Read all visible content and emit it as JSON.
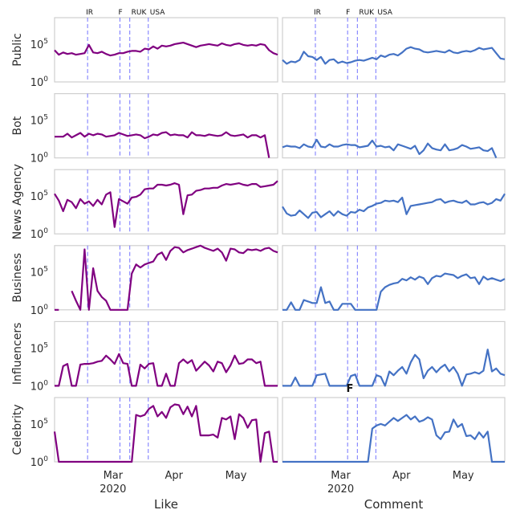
{
  "chart_data": {
    "type": "line",
    "columns": [
      "Like",
      "Comment"
    ],
    "rows": [
      "Public",
      "Bot",
      "News Agency",
      "Business",
      "Influencers",
      "Celebrity"
    ],
    "y_scale": "log",
    "y_ticks": [
      "10^0",
      "10^5"
    ],
    "x_ticks": [
      "Mar",
      "Apr",
      "May"
    ],
    "x_year": "2020",
    "events": [
      {
        "label": "IR",
        "x": 0.148
      },
      {
        "label": "F",
        "x": 0.293
      },
      {
        "label": "RUK",
        "x": 0.337
      },
      {
        "label": "USA",
        "x": 0.42
      }
    ],
    "colors": {
      "Like": "#800080",
      "Comment": "#4472c4",
      "events": "#6b6bff"
    },
    "grid": false,
    "panel_text": {
      "comment_celebrity": "F"
    },
    "series": {
      "Like": [
        [
          4.2,
          3.6,
          3.9,
          3.7,
          3.8,
          3.6,
          3.7,
          3.8,
          4.9,
          3.9,
          3.8,
          4.0,
          3.7,
          3.5,
          3.6,
          3.8,
          3.8,
          4.0,
          4.1,
          4.1,
          4.0,
          4.4,
          4.3,
          4.7,
          4.4,
          4.8,
          4.7,
          4.8,
          5.0,
          5.1,
          5.2,
          5.0,
          4.8,
          4.6,
          4.8,
          4.9,
          5.0,
          4.9,
          4.8,
          5.1,
          4.9,
          4.8,
          5.0,
          5.1,
          4.9,
          4.8,
          4.9,
          4.8,
          5.0,
          4.9,
          4.2,
          3.8,
          3.6
        ],
        [
          2.8,
          2.8,
          2.8,
          3.2,
          2.7,
          3.0,
          3.3,
          2.8,
          3.2,
          3.0,
          3.2,
          3.1,
          2.8,
          2.9,
          3.0,
          3.3,
          3.1,
          2.9,
          3.0,
          3.1,
          3.0,
          2.6,
          2.8,
          3.1,
          3.0,
          3.3,
          3.4,
          3.0,
          3.1,
          3.0,
          3.0,
          2.7,
          3.4,
          3.0,
          3.0,
          2.9,
          3.1,
          3.0,
          2.9,
          3.0,
          3.4,
          3.0,
          2.9,
          3.0,
          3.1,
          2.7,
          3.0,
          3.0,
          2.7,
          3.0,
          0,
          null,
          null
        ],
        [
          5.3,
          4.4,
          3.0,
          4.5,
          4.2,
          3.4,
          4.6,
          4.0,
          4.3,
          3.7,
          4.5,
          3.9,
          5.2,
          5.5,
          0.9,
          4.6,
          4.3,
          4.0,
          4.8,
          4.9,
          5.2,
          5.9,
          6.0,
          6.0,
          6.5,
          6.5,
          6.4,
          6.5,
          6.7,
          6.5,
          2.6,
          5.1,
          5.2,
          5.7,
          5.8,
          6.0,
          6.0,
          6.1,
          6.1,
          6.4,
          6.6,
          6.5,
          6.6,
          6.7,
          6.5,
          6.4,
          6.6,
          6.6,
          6.2,
          6.3,
          6.4,
          6.5,
          7.0
        ],
        [
          0,
          0,
          null,
          null,
          2.5,
          1.2,
          0,
          8.0,
          0,
          5.5,
          2.5,
          1.7,
          1.2,
          0,
          0,
          0,
          0,
          0,
          4.8,
          6.0,
          5.6,
          6.0,
          6.2,
          6.4,
          7.3,
          7.6,
          6.6,
          7.8,
          8.3,
          8.2,
          7.6,
          7.9,
          8.1,
          8.3,
          8.6,
          8.2,
          8.0,
          7.8,
          8.1,
          7.6,
          6.5,
          8.1,
          8.0,
          7.6,
          7.5,
          8.0,
          7.9,
          8.0,
          7.8,
          8.1,
          8.2,
          7.8,
          7.6
        ],
        [
          0,
          0,
          2.6,
          2.9,
          0,
          0,
          2.8,
          2.9,
          2.9,
          3.0,
          3.2,
          3.3,
          4.0,
          3.5,
          2.9,
          4.2,
          3.0,
          2.9,
          0,
          0,
          2.8,
          2.3,
          2.9,
          3.0,
          0,
          0,
          1.6,
          0,
          0,
          3.0,
          3.5,
          3.0,
          3.4,
          2.0,
          2.6,
          3.2,
          2.7,
          1.9,
          3.2,
          3.0,
          1.8,
          2.7,
          4.0,
          2.9,
          3.0,
          3.5,
          3.5,
          3.0,
          3.2,
          0,
          0,
          0,
          0
        ],
        [
          4.0,
          0,
          0,
          0,
          0,
          0,
          0,
          0,
          0,
          0,
          0,
          0,
          0,
          0,
          0,
          0,
          0,
          0,
          0,
          6.2,
          6.0,
          6.2,
          7.0,
          7.4,
          6.0,
          6.6,
          5.8,
          7.2,
          7.6,
          7.5,
          6.3,
          7.3,
          6.0,
          7.4,
          3.5,
          3.5,
          3.5,
          3.6,
          3.2,
          5.8,
          5.6,
          6.0,
          3.0,
          6.3,
          5.8,
          4.5,
          5.5,
          5.6,
          0,
          3.8,
          4.0,
          0,
          0
        ]
      ],
      "Comment": [
        [
          2.9,
          2.4,
          2.7,
          2.6,
          2.9,
          4.0,
          3.4,
          3.3,
          2.9,
          3.3,
          2.4,
          2.9,
          3.0,
          2.5,
          2.7,
          2.5,
          2.6,
          2.8,
          2.9,
          2.8,
          3.0,
          3.2,
          3.0,
          3.5,
          3.3,
          3.6,
          3.7,
          3.5,
          3.9,
          4.4,
          4.6,
          4.4,
          4.3,
          4.0,
          3.9,
          4.0,
          4.1,
          4.0,
          3.9,
          4.2,
          3.9,
          3.8,
          4.0,
          4.1,
          4.0,
          4.2,
          4.5,
          4.3,
          4.4,
          4.5,
          3.8,
          3.1,
          3.0
        ],
        [
          1.4,
          1.6,
          1.5,
          1.5,
          1.3,
          1.8,
          1.5,
          1.4,
          2.4,
          1.5,
          1.4,
          1.8,
          1.5,
          1.5,
          1.7,
          1.8,
          1.7,
          1.7,
          1.4,
          1.5,
          1.6,
          2.3,
          1.5,
          1.6,
          1.4,
          1.5,
          1.0,
          1.8,
          1.6,
          1.4,
          1.2,
          1.6,
          0.5,
          1.0,
          1.9,
          1.3,
          1.1,
          1.0,
          1.8,
          1.0,
          1.1,
          1.3,
          1.7,
          1.5,
          1.2,
          1.3,
          1.4,
          1.0,
          0.9,
          1.3,
          0,
          null,
          null
        ],
        [
          3.6,
          2.7,
          2.4,
          2.5,
          3.1,
          2.6,
          2.1,
          2.8,
          2.9,
          2.2,
          2.6,
          3.0,
          2.4,
          3.0,
          2.6,
          2.4,
          2.9,
          2.8,
          3.2,
          3.0,
          3.5,
          3.7,
          4.0,
          4.1,
          4.4,
          4.3,
          4.4,
          4.2,
          4.8,
          2.6,
          3.7,
          3.8,
          3.9,
          4.0,
          4.1,
          4.2,
          4.5,
          4.6,
          4.1,
          4.3,
          4.4,
          4.2,
          4.1,
          4.4,
          3.9,
          3.9,
          4.1,
          4.2,
          3.9,
          4.1,
          4.6,
          4.4,
          5.3
        ],
        [
          0,
          0,
          1.0,
          0,
          0,
          1.3,
          1.1,
          0.9,
          0.9,
          3.0,
          0.9,
          1.1,
          0,
          0,
          0.8,
          0.8,
          0.8,
          0,
          0,
          0,
          0,
          0,
          0,
          2.4,
          3.0,
          3.3,
          3.5,
          3.6,
          4.1,
          3.9,
          4.3,
          4.0,
          4.4,
          4.2,
          3.4,
          4.2,
          4.5,
          4.4,
          4.8,
          4.7,
          4.6,
          4.2,
          4.5,
          4.7,
          4.2,
          4.3,
          3.4,
          4.4,
          4.0,
          4.2,
          4.0,
          3.8,
          4.1
        ],
        [
          0,
          0,
          0,
          1.1,
          0,
          0,
          0,
          0,
          1.4,
          1.5,
          1.6,
          0,
          0,
          0,
          0,
          0,
          1.3,
          1.5,
          0,
          0,
          0,
          0,
          1.4,
          1.2,
          0,
          1.9,
          1.4,
          2.0,
          2.5,
          1.6,
          3.1,
          4.1,
          3.5,
          1.0,
          2.0,
          2.5,
          1.8,
          2.4,
          2.8,
          1.9,
          2.5,
          1.6,
          0,
          1.5,
          1.6,
          1.8,
          1.6,
          2.0,
          4.8,
          1.9,
          2.3,
          1.6,
          1.4
        ],
        [
          0,
          0,
          0,
          0,
          0,
          0,
          0,
          0,
          0,
          0,
          0,
          0,
          0,
          0,
          0,
          0,
          0,
          0,
          0,
          0,
          0,
          4.4,
          4.8,
          5.0,
          4.8,
          5.3,
          5.8,
          5.4,
          5.8,
          6.2,
          5.6,
          6.0,
          5.3,
          5.5,
          5.9,
          5.6,
          3.5,
          3.0,
          3.9,
          4.0,
          5.6,
          4.6,
          5.0,
          3.4,
          3.5,
          3.0,
          3.9,
          3.2,
          4.0,
          0,
          0,
          0,
          0
        ]
      ]
    }
  }
}
